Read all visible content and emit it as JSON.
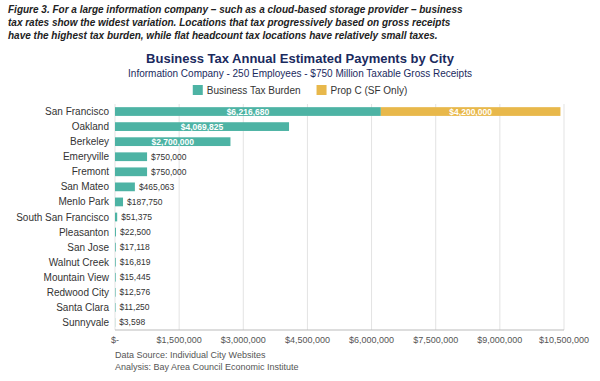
{
  "chart_data": {
    "type": "bar",
    "orientation": "horizontal",
    "stacked": true,
    "data_labels": true,
    "grid": true,
    "legend": "top",
    "caption": "Figure 3. For a large information company – such as a cloud-based storage provider – business\ntax rates show the widest variation. Locations that tax progressively based on gross receipts\nhave the highest tax burden, while flat headcount tax locations have relatively small taxes.",
    "title": "Business Tax Annual Estimated Payments by City",
    "subtitle": "Information Company - 250 Employees - $750 Million Taxable Gross Receipts",
    "footer": [
      "Data Source: Individual City Websites",
      "Analysis: Bay Area Council Economic Institute"
    ],
    "categories": [
      "San Francisco",
      "Oakland",
      "Berkeley",
      "Emeryville",
      "Fremont",
      "San Mateo",
      "Menlo Park",
      "South San Francisco",
      "Pleasanton",
      "San Jose",
      "Walnut Creek",
      "Mountain View",
      "Redwood City",
      "Santa Clara",
      "Sunnyvale"
    ],
    "series": [
      {
        "name": "Business Tax Burden",
        "color": "#4db3a4",
        "values": [
          6216680,
          4069825,
          2700000,
          750000,
          750000,
          465063,
          187750,
          51375,
          22500,
          17118,
          16819,
          15445,
          12576,
          11250,
          3598
        ],
        "value_labels": [
          "$6,216,680",
          "$4,069,825",
          "$2,700,000",
          "$750,000",
          "$750,000",
          "$465,063",
          "$187,750",
          "$51,375",
          "$22,500",
          "$17,118",
          "$16,819",
          "$15,445",
          "$12,576",
          "$11,250",
          "$3,598"
        ]
      },
      {
        "name": "Prop C (SF Only)",
        "color": "#e8b84b",
        "values": [
          4200000,
          0,
          0,
          0,
          0,
          0,
          0,
          0,
          0,
          0,
          0,
          0,
          0,
          0,
          0
        ],
        "value_labels": [
          "$4,200,000",
          null,
          null,
          null,
          null,
          null,
          null,
          null,
          null,
          null,
          null,
          null,
          null,
          null,
          null
        ]
      }
    ],
    "xlim": [
      0,
      10500000
    ],
    "xticks": [
      {
        "value": 0,
        "label": "$-"
      },
      {
        "value": 1500000,
        "label": "$1,500,000"
      },
      {
        "value": 3000000,
        "label": "$3,000,000"
      },
      {
        "value": 4500000,
        "label": "$4,500,000"
      },
      {
        "value": 6000000,
        "label": "$6,000,000"
      },
      {
        "value": 7500000,
        "label": "$7,500,000"
      },
      {
        "value": 9000000,
        "label": "$9,000,000"
      },
      {
        "value": 10500000,
        "label": "$10,500,000"
      }
    ]
  }
}
